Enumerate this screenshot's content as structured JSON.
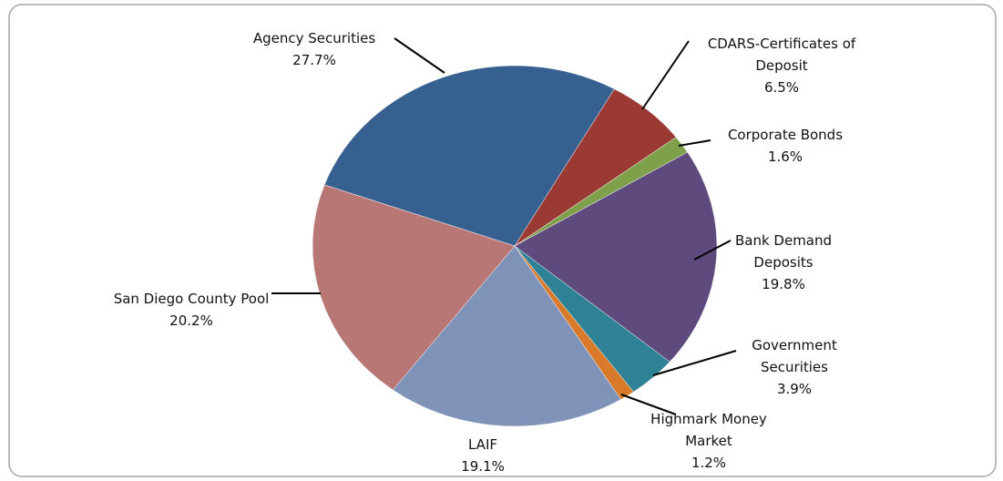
{
  "chart_data": {
    "type": "pie",
    "categories": [
      "Agency Securities",
      "CDARS-Certificates of Deposit",
      "Corporate Bonds",
      "Bank Demand Deposits",
      "Government Securities",
      "Highmark Money Market",
      "LAIF",
      "San Diego County Pool"
    ],
    "values": [
      27.7,
      6.5,
      1.6,
      19.8,
      3.9,
      1.2,
      19.1,
      20.2
    ],
    "value_labels": [
      "27.7%",
      "6.5%",
      "1.6%",
      "19.8%",
      "3.9%",
      "1.2%",
      "19.1%",
      "20.2%"
    ],
    "colors": [
      "#35608f",
      "#9b3a35",
      "#7fa04a",
      "#5f4a7e",
      "#2f8196",
      "#d87a2a",
      "#7f92b8",
      "#b87775"
    ]
  }
}
